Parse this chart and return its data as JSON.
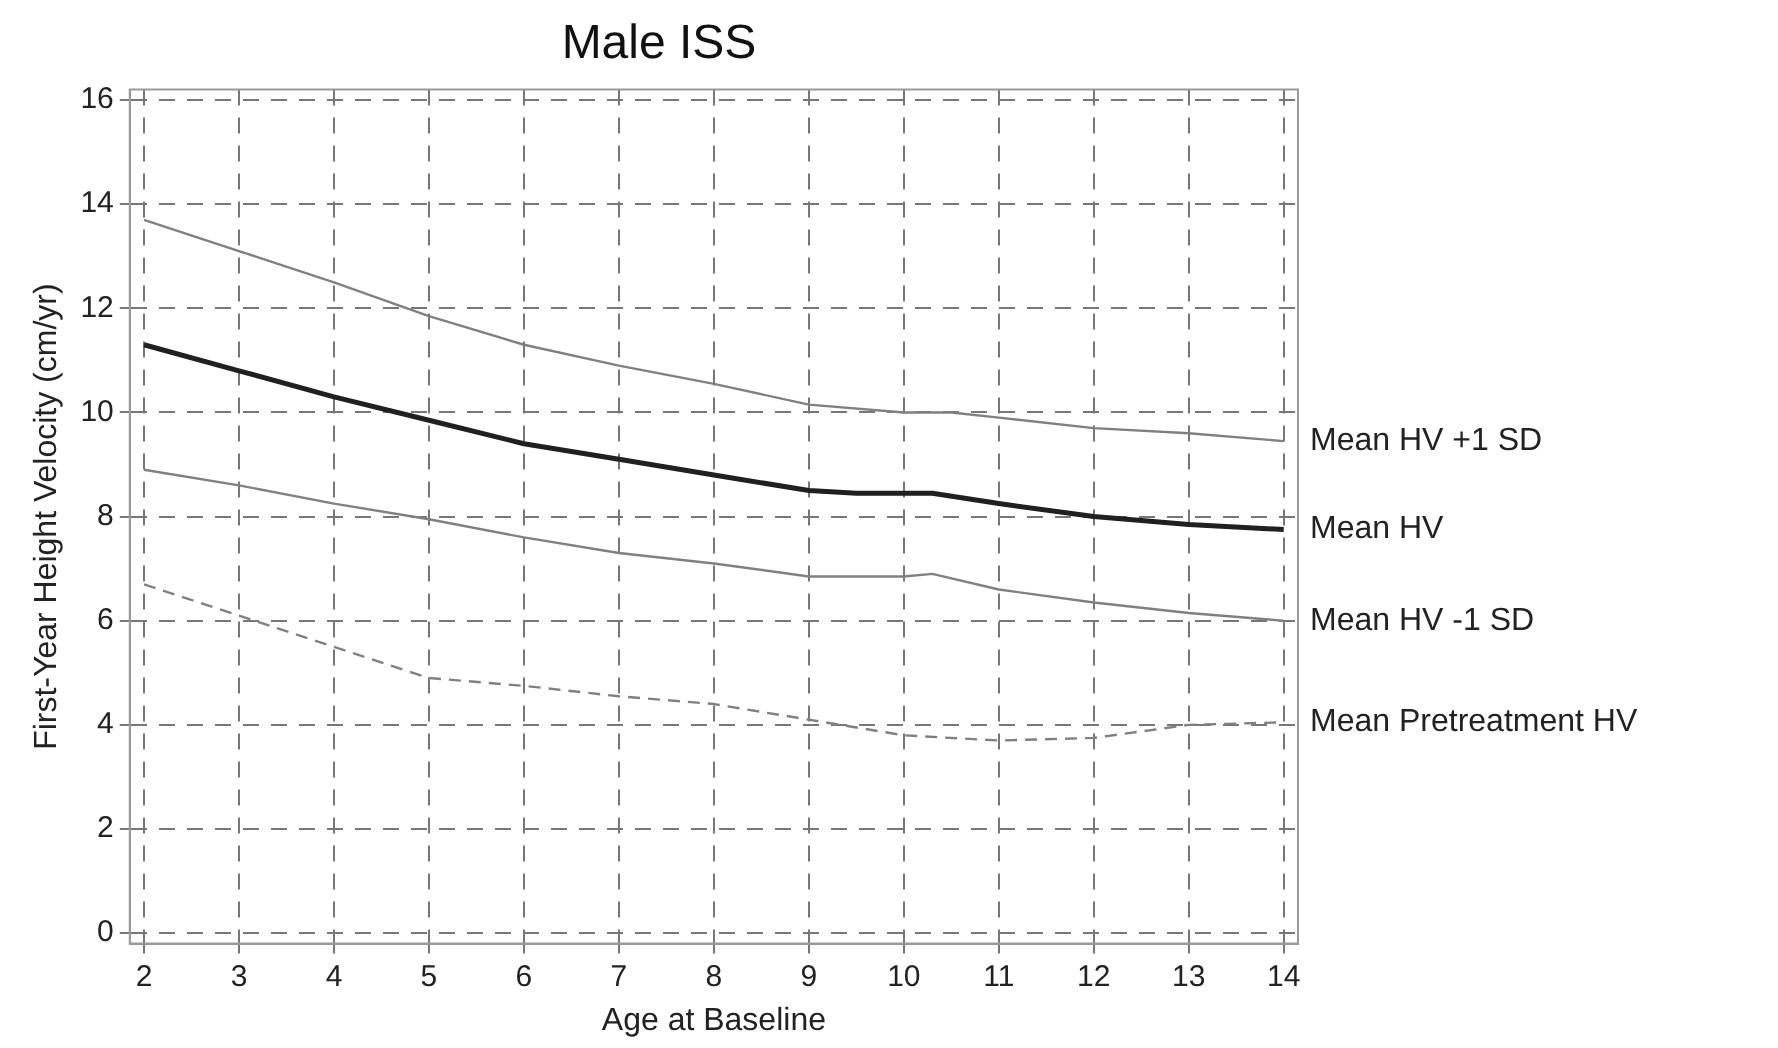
{
  "chart_data": {
    "type": "line",
    "title": "Male ISS",
    "xlabel": "Age at Baseline",
    "ylabel": "First-Year Height Velocity (cm/yr)",
    "xlim": [
      1.85,
      14.15
    ],
    "xticks": [
      2,
      3,
      4,
      5,
      6,
      7,
      8,
      9,
      10,
      11,
      12,
      13,
      14
    ],
    "ylim": [
      -0.2,
      16.2
    ],
    "yticks": [
      0,
      2,
      4,
      6,
      8,
      10,
      12,
      14,
      16
    ],
    "grid": true,
    "legend": false,
    "marker": "none",
    "series": [
      {
        "name": "Mean HV +1 SD",
        "color": "#808080",
        "x": [
          2,
          3,
          4,
          5,
          6,
          7,
          8,
          9,
          10,
          10.5,
          11,
          12,
          13,
          14
        ],
        "values": [
          13.7,
          13.1,
          12.5,
          11.85,
          11.3,
          10.9,
          10.55,
          10.15,
          10.0,
          10.0,
          9.9,
          9.7,
          9.6,
          9.45
        ]
      },
      {
        "name": "Mean HV",
        "color": "#202020",
        "x": [
          2,
          3,
          4,
          5,
          6,
          7,
          8,
          9,
          9.5,
          10.3,
          11,
          12,
          13,
          14
        ],
        "values": [
          11.3,
          10.8,
          10.3,
          9.85,
          9.4,
          9.1,
          8.8,
          8.5,
          8.45,
          8.45,
          8.25,
          8.0,
          7.85,
          7.75
        ]
      },
      {
        "name": "Mean HV -1 SD",
        "color": "#808080",
        "x": [
          2,
          3,
          4,
          5,
          6,
          7,
          8,
          9,
          10,
          10.3,
          11,
          12,
          13,
          14
        ],
        "values": [
          8.9,
          8.6,
          8.25,
          7.95,
          7.6,
          7.3,
          7.1,
          6.85,
          6.85,
          6.9,
          6.6,
          6.35,
          6.15,
          6.0
        ]
      },
      {
        "name": "Mean Pretreatment HV",
        "color": "#808080",
        "line_style": "dashed",
        "x": [
          2,
          3,
          4,
          5,
          6,
          7,
          8,
          9,
          10,
          11,
          12,
          13,
          14
        ],
        "values": [
          6.7,
          6.1,
          5.5,
          4.9,
          4.75,
          4.55,
          4.4,
          4.1,
          3.8,
          3.7,
          3.75,
          4.0,
          4.05
        ]
      }
    ]
  }
}
